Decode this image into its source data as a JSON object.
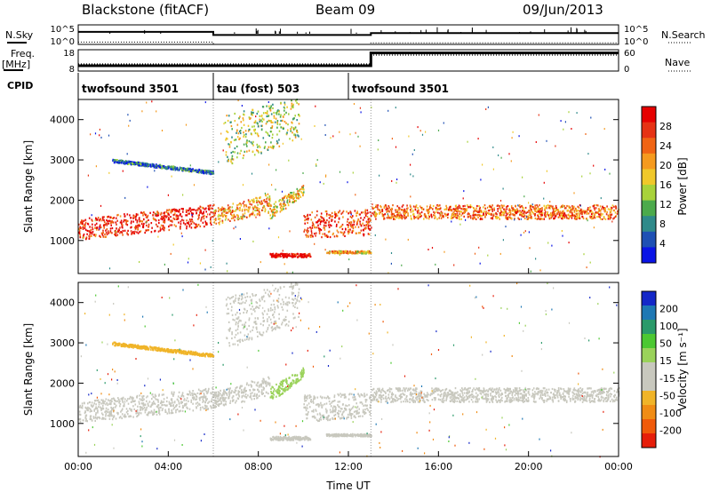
{
  "header": {
    "station": "Blackstone (fitACF)",
    "beam": "Beam 09",
    "date": "09/Jun/2013"
  },
  "labels": {
    "nsky": "N.Sky",
    "nsearch": "N.Search",
    "freq": "Freq.",
    "freq_unit": "[MHz]",
    "nave": "Nave",
    "cpid": "CPID"
  },
  "noise_axis": {
    "left_ticks": [
      "10^5",
      "10^0"
    ],
    "right_ticks": [
      "10^5",
      "10^0"
    ]
  },
  "freq_axis": {
    "left_ticks": [
      "18",
      "8"
    ],
    "right_ticks": [
      "60",
      "0"
    ]
  },
  "cpid_segments": [
    {
      "label": "twofsound 3501",
      "start_h": 0,
      "end_h": 6
    },
    {
      "label": "tau (fost) 503",
      "start_h": 6,
      "end_h": 12
    },
    {
      "label": "twofsound 3501",
      "start_h": 12,
      "end_h": 24
    }
  ],
  "time_axis": {
    "ticks": [
      "00:00",
      "04:00",
      "08:00",
      "12:00",
      "16:00",
      "20:00",
      "00:00"
    ],
    "label": "Time UT",
    "range_h": [
      0,
      24
    ]
  },
  "range_axis": {
    "label": "Slant Range [km]",
    "ticks": [
      "1000",
      "2000",
      "3000",
      "4000"
    ],
    "range_km": [
      180,
      4500
    ]
  },
  "power_colorbar": {
    "label": "Power [dB]",
    "ticks": [
      "4",
      "8",
      "12",
      "16",
      "20",
      "24",
      "28"
    ],
    "colors": [
      "#0a14e6",
      "#1e50b4",
      "#2f8a8a",
      "#4caa4c",
      "#a8d23a",
      "#f0c82a",
      "#f59a1e",
      "#f06414",
      "#e63214",
      "#e60000"
    ]
  },
  "velocity_colorbar": {
    "label": "Velocity [m s⁻¹]",
    "ticks": [
      "200",
      "100",
      "50",
      "15",
      "-15",
      "-50",
      "-100",
      "-200"
    ],
    "colors": [
      "#1428c8",
      "#1e78b4",
      "#2a9a6a",
      "#4cc832",
      "#9ad25a",
      "#c8c8be",
      "#c8c8be",
      "#f0b428",
      "#f08c14",
      "#f05a0a",
      "#e61e0a"
    ]
  },
  "chart_data": [
    {
      "type": "line",
      "title": "",
      "series": [
        {
          "name": "N.Sky",
          "x": [
            0,
            6,
            6,
            13,
            13,
            24
          ],
          "values": [
            3.2,
            3.2,
            2.4,
            2.4,
            2.9,
            2.9
          ]
        },
        {
          "name": "N.Search",
          "x": [
            0,
            6,
            6,
            13,
            13,
            24
          ],
          "values": [
            0.6,
            0.6,
            0,
            0,
            0.4,
            0.4
          ]
        }
      ],
      "ylim": [
        0,
        5
      ]
    },
    {
      "type": "line",
      "series": [
        {
          "name": "Freq.",
          "x": [
            0,
            13,
            13,
            24
          ],
          "values": [
            10.5,
            10.5,
            16.5,
            16.5
          ]
        },
        {
          "name": "Nave",
          "x": [
            0,
            13,
            13,
            24
          ],
          "values": [
            20,
            20,
            45,
            45
          ]
        }
      ],
      "ylim": [
        8,
        18
      ]
    },
    {
      "type": "heatmap",
      "name": "Power",
      "xlabel": "Time UT",
      "ylabel": "Slant Range [km]",
      "xlim": [
        0,
        24
      ],
      "ylim": [
        180,
        4500
      ],
      "colorbar": "Power [dB]",
      "colorbar_range": [
        0,
        30
      ],
      "bands": [
        {
          "t": [
            0,
            6
          ],
          "r0": [
            1150,
            1500
          ],
          "r1": [
            1450,
            1800
          ],
          "width": 220,
          "value": 27
        },
        {
          "t": [
            6,
            8.5
          ],
          "r0": [
            1500,
            1800
          ],
          "r1": [
            1700,
            2100
          ],
          "width": 200,
          "value": 20
        },
        {
          "t": [
            8.5,
            10
          ],
          "r0": [
            1800,
            2300
          ],
          "r1": [
            1650,
            2250
          ],
          "width": 220,
          "value": 17
        },
        {
          "t": [
            10,
            13
          ],
          "r0": [
            1650,
            1700
          ],
          "r1": [
            1150,
            1250
          ],
          "width": 180,
          "value": 25
        },
        {
          "t": [
            13,
            24
          ],
          "r0": [
            1750,
            1750
          ],
          "r1": [
            1700,
            1700
          ],
          "width": 300,
          "value": 22
        },
        {
          "t": [
            8.5,
            10.3
          ],
          "r0": [
            650,
            650
          ],
          "r1": [
            650,
            650
          ],
          "width": 90,
          "value": 30
        },
        {
          "t": [
            6.5,
            9.8
          ],
          "r0": [
            3000,
            3700
          ],
          "r1": [
            4000,
            4400
          ],
          "width": 300,
          "value": 14
        },
        {
          "t": [
            1.5,
            6
          ],
          "r0": [
            3000,
            2700
          ],
          "r1": [
            3000,
            2700
          ],
          "width": 80,
          "value": 6
        },
        {
          "t": [
            11,
            13
          ],
          "r0": [
            730,
            730
          ],
          "r1": [
            730,
            730
          ],
          "width": 60,
          "value": 18
        }
      ]
    },
    {
      "type": "heatmap",
      "name": "Velocity",
      "xlabel": "Time UT",
      "ylabel": "Slant Range [km]",
      "xlim": [
        0,
        24
      ],
      "ylim": [
        180,
        4500
      ],
      "colorbar": "Velocity [m s⁻¹]",
      "colorbar_range": [
        -250,
        250
      ],
      "bands": [
        {
          "t": [
            0,
            6
          ],
          "r0": [
            1150,
            1500
          ],
          "r1": [
            1450,
            1800
          ],
          "width": 220,
          "value": 0
        },
        {
          "t": [
            6,
            8.5
          ],
          "r0": [
            1500,
            1800
          ],
          "r1": [
            1700,
            2100
          ],
          "width": 200,
          "value": 5
        },
        {
          "t": [
            8.5,
            10
          ],
          "r0": [
            1800,
            2300
          ],
          "r1": [
            1650,
            2250
          ],
          "width": 220,
          "value": 30
        },
        {
          "t": [
            10,
            13
          ],
          "r0": [
            1650,
            1700
          ],
          "r1": [
            1150,
            1250
          ],
          "width": 180,
          "value": -5
        },
        {
          "t": [
            13,
            24
          ],
          "r0": [
            1750,
            1750
          ],
          "r1": [
            1700,
            1700
          ],
          "width": 300,
          "value": 0
        },
        {
          "t": [
            8.5,
            10.3
          ],
          "r0": [
            650,
            650
          ],
          "r1": [
            650,
            650
          ],
          "width": 90,
          "value": 0
        },
        {
          "t": [
            6.5,
            9.8
          ],
          "r0": [
            3000,
            3700
          ],
          "r1": [
            4000,
            4400
          ],
          "width": 300,
          "value": 10
        },
        {
          "t": [
            1.5,
            6
          ],
          "r0": [
            3000,
            2700
          ],
          "r1": [
            3000,
            2700
          ],
          "width": 80,
          "value": -80
        },
        {
          "t": [
            11,
            13
          ],
          "r0": [
            730,
            730
          ],
          "r1": [
            730,
            730
          ],
          "width": 60,
          "value": -10
        }
      ]
    }
  ]
}
